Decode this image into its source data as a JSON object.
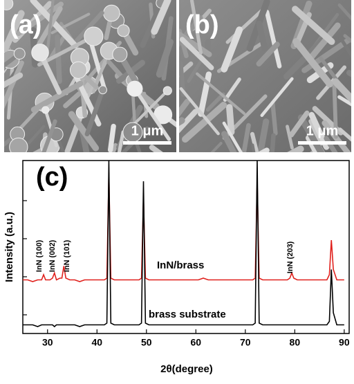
{
  "images": [
    {
      "label": "(a)",
      "scale_bar": "1 μm"
    },
    {
      "label": "(b)",
      "scale_bar": "1 μm"
    }
  ],
  "chart_data": {
    "type": "line",
    "label": "(c)",
    "x_label": "2θ(degree)",
    "y_label": "Intensity (a.u.)",
    "xlim": [
      25,
      91
    ],
    "xticks": [
      30,
      40,
      50,
      60,
      70,
      80,
      90
    ],
    "ylim": [
      0,
      100
    ],
    "annotations": [
      "InN (100)",
      "InN (002)",
      "InN (101)",
      "InN (203)"
    ],
    "x": [
      25,
      26,
      27,
      28,
      28.8,
      29.2,
      29.6,
      30.5,
      31,
      31.4,
      31.8,
      32.5,
      32.9,
      33.3,
      33.7,
      34.5,
      35.5,
      36.5,
      37.5,
      38.5,
      39.5,
      40.5,
      41.5,
      42.0,
      42.4,
      42.8,
      43.5,
      44.5,
      45.5,
      46.5,
      47.5,
      48.5,
      49.0,
      49.4,
      49.8,
      50.5,
      51.5,
      52.5,
      53.5,
      54.5,
      55.5,
      56.5,
      57.5,
      58.5,
      59.5,
      60.5,
      61.5,
      62.5,
      63.5,
      64.5,
      65.5,
      66.5,
      67.5,
      68.5,
      69.5,
      70.5,
      71.5,
      72.0,
      72.4,
      72.8,
      73.5,
      74.5,
      75.5,
      76.5,
      77.5,
      78.5,
      79.0,
      79.4,
      79.8,
      80.5,
      81.5,
      82.5,
      83.5,
      84.5,
      85.5,
      86.5,
      87.0,
      87.4,
      87.8,
      88.5,
      89.5,
      90
    ],
    "series": [
      {
        "name": "InN/brass",
        "color": "#e0201c",
        "values": [
          31,
          31,
          30,
          31,
          31,
          34,
          31,
          31,
          32,
          35,
          31,
          32,
          32,
          39,
          32,
          31,
          31,
          30,
          31,
          31,
          31,
          31,
          31,
          32,
          93,
          32,
          31,
          31,
          31,
          31,
          31,
          31,
          32,
          79,
          32,
          31,
          31,
          31,
          31,
          31,
          31,
          31,
          31,
          31,
          31,
          31,
          32,
          31,
          31,
          31,
          31,
          31,
          31,
          31,
          31,
          31,
          31,
          32,
          89,
          32,
          31,
          31,
          31,
          31,
          31,
          31,
          32,
          35,
          32,
          31,
          31,
          31,
          31,
          31,
          31,
          31,
          34,
          54,
          37,
          31,
          31,
          31
        ]
      },
      {
        "name": "brass substrate",
        "color": "#000000",
        "values": [
          5,
          5,
          5,
          4,
          5,
          5,
          5,
          5,
          5,
          4,
          5,
          5,
          5,
          5,
          5,
          5,
          5,
          4,
          5,
          5,
          5,
          5,
          5,
          6,
          100,
          6,
          5,
          5,
          5,
          5,
          5,
          5,
          6,
          88,
          6,
          5,
          5,
          5,
          5,
          5,
          5,
          5,
          5,
          5,
          5,
          5,
          5,
          5,
          5,
          5,
          5,
          5,
          5,
          5,
          5,
          5,
          5,
          6,
          100,
          6,
          5,
          5,
          5,
          5,
          5,
          5,
          5,
          5,
          5,
          5,
          5,
          5,
          5,
          5,
          5,
          5,
          7,
          37,
          12,
          5,
          5,
          5
        ]
      }
    ]
  }
}
